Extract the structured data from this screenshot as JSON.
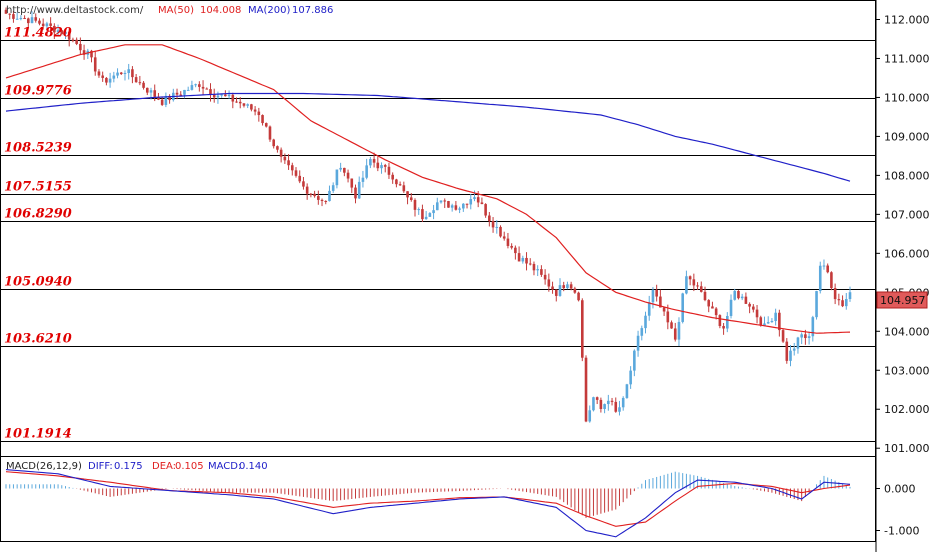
{
  "header": {
    "site": "http://www.deltastock.com/",
    "ma50_label": "MA(50)",
    "ma50_value": "104.008",
    "ma200_label": "MA(200)",
    "ma200_value": "107.886",
    "ma50_color": "#e02020",
    "ma200_color": "#2020c8"
  },
  "macd_header": {
    "title": "MACD(26,12,9)",
    "diff_label": "DIFF:",
    "diff_value": "0.175",
    "dea_label": "DEA:",
    "dea_value": "0.105",
    "macd_label": "MACD:",
    "macd_value": "0.140"
  },
  "price_badge": "104.957",
  "colors": {
    "up": "#5aa8dc",
    "down": "#c43a3a",
    "level": "#e00000"
  },
  "chart_data": [
    {
      "type": "candlestick",
      "ylim": [
        100.8,
        112.5
      ],
      "yticks": [
        "112.000",
        "111.000",
        "110.000",
        "109.000",
        "108.000",
        "107.000",
        "106.000",
        "105.000",
        "104.000",
        "103.000",
        "102.000",
        "101.000"
      ],
      "levels": [
        {
          "label": "111.4820",
          "value": 111.482
        },
        {
          "label": "109.9776",
          "value": 109.9776
        },
        {
          "label": "108.5239",
          "value": 108.5239
        },
        {
          "label": "107.5155",
          "value": 107.5155
        },
        {
          "label": "106.8290",
          "value": 106.829
        },
        {
          "label": "105.0940",
          "value": 105.094
        },
        {
          "label": "103.6210",
          "value": 103.621
        },
        {
          "label": "101.1914",
          "value": 101.1914
        }
      ],
      "close_anchors": [
        [
          0,
          112.15
        ],
        [
          8,
          111.95
        ],
        [
          16,
          111.65
        ],
        [
          22,
          111.1
        ],
        [
          26,
          110.4
        ],
        [
          32,
          110.7
        ],
        [
          38,
          110.2
        ],
        [
          42,
          109.9
        ],
        [
          52,
          110.35
        ],
        [
          56,
          110.1
        ],
        [
          62,
          109.9
        ],
        [
          68,
          109.6
        ],
        [
          74,
          108.4
        ],
        [
          80,
          107.7
        ],
        [
          86,
          107.3
        ],
        [
          90,
          108.3
        ],
        [
          94,
          107.5
        ],
        [
          98,
          108.4
        ],
        [
          104,
          108.0
        ],
        [
          108,
          107.4
        ],
        [
          112,
          106.95
        ],
        [
          116,
          107.3
        ],
        [
          122,
          107.2
        ],
        [
          126,
          107.5
        ],
        [
          130,
          106.9
        ],
        [
          134,
          106.4
        ],
        [
          138,
          105.9
        ],
        [
          142,
          105.6
        ],
        [
          145,
          105.3
        ],
        [
          148,
          105.0
        ],
        [
          151,
          105.3
        ],
        [
          154,
          104.9
        ],
        [
          156,
          101.7
        ],
        [
          158,
          102.3
        ],
        [
          160,
          102.0
        ],
        [
          162,
          102.3
        ],
        [
          164,
          101.9
        ],
        [
          166,
          102.2
        ],
        [
          170,
          103.8
        ],
        [
          174,
          105.0
        ],
        [
          178,
          104.2
        ],
        [
          180,
          103.8
        ],
        [
          183,
          105.4
        ],
        [
          186,
          105.1
        ],
        [
          190,
          104.5
        ],
        [
          193,
          104.1
        ],
        [
          196,
          105.0
        ],
        [
          200,
          104.7
        ],
        [
          204,
          104.1
        ],
        [
          207,
          104.5
        ],
        [
          210,
          103.3
        ],
        [
          214,
          103.9
        ],
        [
          216,
          103.8
        ],
        [
          219,
          105.7
        ],
        [
          221,
          105.5
        ],
        [
          223,
          104.9
        ],
        [
          225,
          104.7
        ],
        [
          227,
          105.0
        ]
      ],
      "ma50_anchors": [
        [
          0,
          110.5
        ],
        [
          20,
          111.1
        ],
        [
          32,
          111.35
        ],
        [
          42,
          111.35
        ],
        [
          52,
          111.0
        ],
        [
          62,
          110.6
        ],
        [
          72,
          110.2
        ],
        [
          82,
          109.4
        ],
        [
          92,
          108.9
        ],
        [
          102,
          108.4
        ],
        [
          112,
          107.95
        ],
        [
          122,
          107.65
        ],
        [
          132,
          107.4
        ],
        [
          140,
          107.0
        ],
        [
          148,
          106.4
        ],
        [
          156,
          105.5
        ],
        [
          164,
          105.0
        ],
        [
          172,
          104.75
        ],
        [
          180,
          104.55
        ],
        [
          190,
          104.35
        ],
        [
          200,
          104.2
        ],
        [
          210,
          104.05
        ],
        [
          218,
          103.95
        ],
        [
          227,
          103.98
        ]
      ],
      "ma200_anchors": [
        [
          0,
          109.65
        ],
        [
          20,
          109.85
        ],
        [
          40,
          110.0
        ],
        [
          60,
          110.1
        ],
        [
          80,
          110.1
        ],
        [
          100,
          110.05
        ],
        [
          120,
          109.9
        ],
        [
          140,
          109.75
        ],
        [
          160,
          109.55
        ],
        [
          170,
          109.3
        ],
        [
          180,
          109.0
        ],
        [
          190,
          108.8
        ],
        [
          200,
          108.55
        ],
        [
          210,
          108.3
        ],
        [
          220,
          108.05
        ],
        [
          227,
          107.85
        ]
      ]
    },
    {
      "type": "macd",
      "ylim": [
        -1.25,
        0.75
      ],
      "yticks": [
        "0.000",
        "-1.000"
      ],
      "diff_anchors": [
        [
          0,
          0.45
        ],
        [
          14,
          0.35
        ],
        [
          28,
          0.05
        ],
        [
          44,
          -0.05
        ],
        [
          60,
          -0.15
        ],
        [
          72,
          -0.25
        ],
        [
          88,
          -0.6
        ],
        [
          98,
          -0.45
        ],
        [
          110,
          -0.35
        ],
        [
          122,
          -0.25
        ],
        [
          134,
          -0.2
        ],
        [
          148,
          -0.45
        ],
        [
          156,
          -1.0
        ],
        [
          164,
          -1.15
        ],
        [
          172,
          -0.7
        ],
        [
          180,
          -0.1
        ],
        [
          186,
          0.2
        ],
        [
          196,
          0.15
        ],
        [
          206,
          0.0
        ],
        [
          214,
          -0.25
        ],
        [
          220,
          0.15
        ],
        [
          227,
          0.1
        ]
      ],
      "dea_anchors": [
        [
          0,
          0.4
        ],
        [
          14,
          0.3
        ],
        [
          28,
          0.15
        ],
        [
          44,
          -0.05
        ],
        [
          60,
          -0.1
        ],
        [
          72,
          -0.2
        ],
        [
          88,
          -0.45
        ],
        [
          98,
          -0.35
        ],
        [
          110,
          -0.3
        ],
        [
          122,
          -0.22
        ],
        [
          134,
          -0.2
        ],
        [
          148,
          -0.35
        ],
        [
          156,
          -0.65
        ],
        [
          164,
          -0.9
        ],
        [
          172,
          -0.8
        ],
        [
          180,
          -0.3
        ],
        [
          186,
          0.05
        ],
        [
          196,
          0.12
        ],
        [
          206,
          0.05
        ],
        [
          214,
          -0.1
        ],
        [
          220,
          0.0
        ],
        [
          227,
          0.08
        ]
      ]
    }
  ]
}
